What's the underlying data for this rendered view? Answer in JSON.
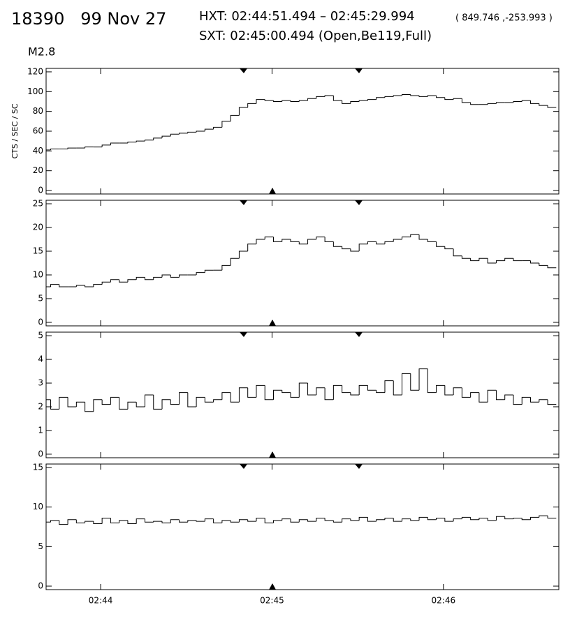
{
  "header": {
    "id_date": "18390   99 Nov 27",
    "hxt": "HXT: 02:44:51.494 – 02:45:29.994",
    "coords": "( 849.746 ,-253.993 )",
    "sxt": "SXT: 02:45:00.494 (Open,Be119,Full)",
    "class": "M2.8"
  },
  "chart_data": [
    {
      "type": "step",
      "ylabel": "CTS / SEC / SC",
      "color": "#000000",
      "xlim": [
        9820.9,
        10000.4
      ],
      "ylim": [
        -3.5,
        123.5
      ],
      "yticks": [
        0,
        20,
        40,
        60,
        80,
        100,
        120
      ],
      "x": [
        9821,
        9824,
        9827,
        9830,
        9833,
        9836,
        9839,
        9842,
        9845,
        9848,
        9851,
        9854,
        9857,
        9860,
        9863,
        9866,
        9869,
        9872,
        9875,
        9878,
        9881,
        9884,
        9887,
        9890,
        9893,
        9896,
        9899,
        9902,
        9905,
        9908,
        9911,
        9914,
        9917,
        9920,
        9923,
        9926,
        9929,
        9932,
        9935,
        9938,
        9941,
        9944,
        9947,
        9950,
        9953,
        9956,
        9959,
        9962,
        9965,
        9968,
        9971,
        9974,
        9977,
        9980,
        9983,
        9986,
        9989,
        9992,
        9995,
        9998
      ],
      "values": [
        41,
        42,
        42,
        43,
        43,
        44,
        44,
        46,
        48,
        48,
        49,
        50,
        51,
        53,
        55,
        57,
        58,
        59,
        60,
        62,
        64,
        70,
        76,
        84,
        88,
        92,
        91,
        90,
        91,
        90,
        91,
        93,
        95,
        96,
        91,
        88,
        90,
        91,
        92,
        94,
        95,
        96,
        97,
        96,
        95,
        96,
        94,
        92,
        93,
        89,
        87,
        87,
        88,
        89,
        89,
        90,
        91,
        88,
        86,
        84
      ]
    },
    {
      "type": "step",
      "color": "#000000",
      "xlim": [
        9820.9,
        10000.4
      ],
      "ylim": [
        -0.74,
        25.74
      ],
      "yticks": [
        0,
        5,
        10,
        15,
        20,
        25
      ],
      "x": [
        9821,
        9824,
        9827,
        9830,
        9833,
        9836,
        9839,
        9842,
        9845,
        9848,
        9851,
        9854,
        9857,
        9860,
        9863,
        9866,
        9869,
        9872,
        9875,
        9878,
        9881,
        9884,
        9887,
        9890,
        9893,
        9896,
        9899,
        9902,
        9905,
        9908,
        9911,
        9914,
        9917,
        9920,
        9923,
        9926,
        9929,
        9932,
        9935,
        9938,
        9941,
        9944,
        9947,
        9950,
        9953,
        9956,
        9959,
        9962,
        9965,
        9968,
        9971,
        9974,
        9977,
        9980,
        9983,
        9986,
        9989,
        9992,
        9995,
        9998
      ],
      "values": [
        7.5,
        8,
        7.5,
        7.5,
        7.8,
        7.5,
        8,
        8.5,
        9,
        8.5,
        9,
        9.5,
        9,
        9.5,
        10,
        9.5,
        10,
        10,
        10.5,
        11,
        11,
        12,
        13.5,
        15,
        16.5,
        17.5,
        18,
        17,
        17.5,
        17,
        16.5,
        17.5,
        18,
        17,
        16,
        15.5,
        15,
        16.5,
        17,
        16.5,
        17,
        17.5,
        18,
        18.5,
        17.5,
        17,
        16,
        15.5,
        14,
        13.5,
        13,
        13.5,
        12.5,
        13,
        13.5,
        13,
        13,
        12.5,
        12,
        11.5
      ]
    },
    {
      "type": "step",
      "color": "#000000",
      "xlim": [
        9820.9,
        10000.4
      ],
      "ylim": [
        -0.15,
        5.15
      ],
      "yticks": [
        0,
        1,
        2,
        3,
        4,
        5
      ],
      "x": [
        9821,
        9824,
        9827,
        9830,
        9833,
        9836,
        9839,
        9842,
        9845,
        9848,
        9851,
        9854,
        9857,
        9860,
        9863,
        9866,
        9869,
        9872,
        9875,
        9878,
        9881,
        9884,
        9887,
        9890,
        9893,
        9896,
        9899,
        9902,
        9905,
        9908,
        9911,
        9914,
        9917,
        9920,
        9923,
        9926,
        9929,
        9932,
        9935,
        9938,
        9941,
        9944,
        9947,
        9950,
        9953,
        9956,
        9959,
        9962,
        9965,
        9968,
        9971,
        9974,
        9977,
        9980,
        9983,
        9986,
        9989,
        9992,
        9995,
        9998
      ],
      "values": [
        2.3,
        1.9,
        2.4,
        2.0,
        2.2,
        1.8,
        2.3,
        2.1,
        2.4,
        1.9,
        2.2,
        2.0,
        2.5,
        1.9,
        2.3,
        2.1,
        2.6,
        2.0,
        2.4,
        2.2,
        2.3,
        2.6,
        2.2,
        2.8,
        2.4,
        2.9,
        2.3,
        2.7,
        2.6,
        2.4,
        3.0,
        2.5,
        2.8,
        2.3,
        2.9,
        2.6,
        2.5,
        2.9,
        2.7,
        2.6,
        3.1,
        2.5,
        3.4,
        2.7,
        3.6,
        2.6,
        2.9,
        2.5,
        2.8,
        2.4,
        2.6,
        2.2,
        2.7,
        2.3,
        2.5,
        2.1,
        2.4,
        2.2,
        2.3,
        2.1
      ]
    },
    {
      "type": "step",
      "color": "#000000",
      "xlim": [
        9820.9,
        10000.4
      ],
      "ylim": [
        -0.44,
        15.44
      ],
      "yticks": [
        0,
        5,
        10,
        15
      ],
      "xticks": [
        {
          "value": 9840,
          "label": "02:44"
        },
        {
          "value": 9900,
          "label": "02:45"
        },
        {
          "value": 9960,
          "label": "02:46"
        }
      ],
      "x": [
        9821,
        9824,
        9827,
        9830,
        9833,
        9836,
        9839,
        9842,
        9845,
        9848,
        9851,
        9854,
        9857,
        9860,
        9863,
        9866,
        9869,
        9872,
        9875,
        9878,
        9881,
        9884,
        9887,
        9890,
        9893,
        9896,
        9899,
        9902,
        9905,
        9908,
        9911,
        9914,
        9917,
        9920,
        9923,
        9926,
        9929,
        9932,
        9935,
        9938,
        9941,
        9944,
        9947,
        9950,
        9953,
        9956,
        9959,
        9962,
        9965,
        9968,
        9971,
        9974,
        9977,
        9980,
        9983,
        9986,
        9989,
        9992,
        9995,
        9998
      ],
      "values": [
        8.1,
        8.3,
        7.8,
        8.4,
        8.0,
        8.2,
        7.9,
        8.6,
        8.0,
        8.3,
        7.9,
        8.5,
        8.1,
        8.2,
        8.0,
        8.4,
        8.1,
        8.3,
        8.2,
        8.5,
        8.0,
        8.3,
        8.1,
        8.4,
        8.2,
        8.6,
        8.0,
        8.3,
        8.5,
        8.1,
        8.4,
        8.2,
        8.6,
        8.3,
        8.1,
        8.5,
        8.3,
        8.7,
        8.2,
        8.4,
        8.6,
        8.2,
        8.5,
        8.3,
        8.7,
        8.4,
        8.6,
        8.2,
        8.5,
        8.7,
        8.4,
        8.6,
        8.3,
        8.8,
        8.5,
        8.6,
        8.4,
        8.7,
        8.9,
        8.6
      ]
    }
  ]
}
